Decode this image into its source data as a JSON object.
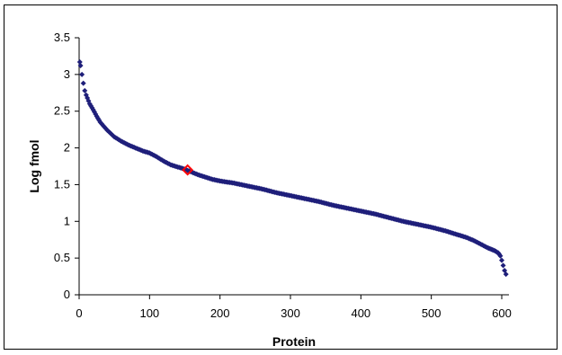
{
  "chart_data": {
    "type": "scatter",
    "title": "",
    "xlabel": "Protein",
    "ylabel": "Log fmol",
    "xlim": [
      0,
      600
    ],
    "ylim": [
      0,
      3.5
    ],
    "x_ticks": [
      0,
      100,
      200,
      300,
      400,
      500,
      600
    ],
    "y_ticks": [
      0,
      0.5,
      1,
      1.5,
      2,
      2.5,
      3,
      3.5
    ],
    "grid": false,
    "legend": "none",
    "marker": "diamond",
    "series": [
      {
        "color": "#1f1f7a",
        "x": [
          1,
          2,
          4,
          6,
          8,
          10,
          15,
          20,
          25,
          30,
          40,
          50,
          60,
          70,
          80,
          90,
          100,
          110,
          120,
          130,
          140,
          150,
          160,
          170,
          180,
          190,
          200,
          220,
          240,
          260,
          280,
          300,
          320,
          340,
          360,
          380,
          400,
          420,
          440,
          460,
          480,
          500,
          520,
          540,
          550,
          560,
          570,
          580,
          585,
          590,
          595,
          598,
          600,
          602,
          604,
          606
        ],
        "y": [
          3.17,
          3.12,
          3.0,
          2.88,
          2.78,
          2.72,
          2.6,
          2.52,
          2.43,
          2.35,
          2.24,
          2.15,
          2.09,
          2.04,
          2.0,
          1.96,
          1.93,
          1.88,
          1.82,
          1.77,
          1.74,
          1.71,
          1.67,
          1.63,
          1.6,
          1.57,
          1.55,
          1.52,
          1.48,
          1.44,
          1.39,
          1.35,
          1.31,
          1.27,
          1.22,
          1.18,
          1.14,
          1.1,
          1.05,
          1.0,
          0.96,
          0.92,
          0.87,
          0.81,
          0.78,
          0.74,
          0.69,
          0.64,
          0.62,
          0.6,
          0.57,
          0.53,
          0.47,
          0.4,
          0.33,
          0.28
        ]
      },
      {
        "color": "#ff0000",
        "x": [
          154
        ],
        "y": [
          1.7
        ]
      }
    ]
  }
}
